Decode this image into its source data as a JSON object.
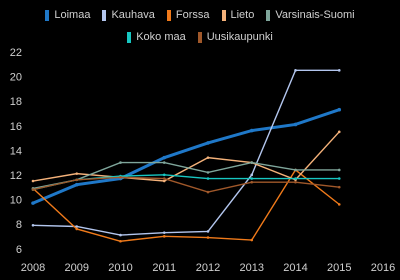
{
  "chart_data": {
    "type": "line",
    "x": [
      2008,
      2009,
      2010,
      2011,
      2012,
      2013,
      2014,
      2015
    ],
    "series": [
      {
        "name": "Loimaa",
        "color": "#1f78c8",
        "values": [
          9.8,
          11.3,
          11.8,
          13.5,
          14.7,
          15.7,
          16.2,
          17.4
        ]
      },
      {
        "name": "Kauhava",
        "color": "#b3c6ee",
        "values": [
          8.0,
          7.9,
          7.2,
          7.4,
          7.5,
          12.1,
          20.6,
          20.6
        ]
      },
      {
        "name": "Forssa",
        "color": "#f07a1a",
        "values": [
          11.0,
          7.7,
          6.7,
          7.1,
          7.0,
          6.8,
          12.5,
          9.7
        ]
      },
      {
        "name": "Lieto",
        "color": "#f5b27a",
        "values": [
          11.6,
          12.2,
          11.9,
          11.6,
          13.5,
          13.1,
          11.7,
          15.6
        ]
      },
      {
        "name": "Varsinais-Suomi",
        "color": "#7fa69b",
        "values": [
          11.0,
          11.7,
          13.1,
          13.1,
          12.3,
          13.1,
          12.5,
          12.5
        ]
      },
      {
        "name": "Koko maa",
        "color": "#17c7c2",
        "values": [
          10.9,
          11.7,
          12.0,
          12.1,
          11.8,
          11.8,
          11.8,
          11.8
        ]
      },
      {
        "name": "Uusikaupunki",
        "color": "#a0582a",
        "values": [
          10.9,
          11.7,
          11.9,
          11.8,
          10.7,
          11.5,
          11.5,
          11.1
        ]
      }
    ],
    "xlim": [
      2008,
      2016
    ],
    "xticks": [
      2008,
      2009,
      2010,
      2011,
      2012,
      2013,
      2014,
      2015,
      2016
    ],
    "ylim": [
      5.5,
      22.5
    ],
    "yticks": [
      6,
      8,
      10,
      12,
      14,
      16,
      18,
      20,
      22
    ]
  }
}
